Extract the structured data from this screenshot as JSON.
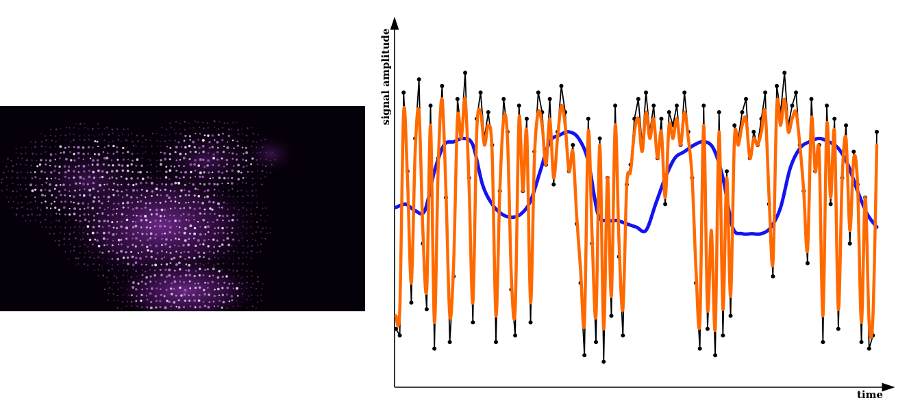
{
  "image": {
    "subject": "microscopy-image",
    "colors": {
      "background": "#06000a",
      "fluorescence": "#b86fd0",
      "highlight": "#f2dcff"
    }
  },
  "chart_data": {
    "type": "line",
    "xlabel": "time",
    "ylabel": "signal amplitude",
    "grid": false,
    "legend": "none",
    "axes": {
      "arrows": true,
      "tick_labels": false
    },
    "xlim": [
      0,
      1
    ],
    "ylim": [
      0,
      1
    ],
    "series": [
      {
        "style": "black-line-with-markers",
        "color": "#000000",
        "x": [
          0.0,
          0.008,
          0.016,
          0.024,
          0.032,
          0.04,
          0.048,
          0.056,
          0.064,
          0.072,
          0.08,
          0.088,
          0.096,
          0.104,
          0.112,
          0.12,
          0.128,
          0.136,
          0.144,
          0.152,
          0.16,
          0.168,
          0.176,
          0.184,
          0.192,
          0.2,
          0.208,
          0.216,
          0.224,
          0.232,
          0.24,
          0.248,
          0.256,
          0.264,
          0.272,
          0.28,
          0.288,
          0.296,
          0.304,
          0.312,
          0.32,
          0.328,
          0.336,
          0.344,
          0.352,
          0.36,
          0.368,
          0.376,
          0.384,
          0.392,
          0.4,
          0.408,
          0.416,
          0.424,
          0.432,
          0.44,
          0.448,
          0.456,
          0.464,
          0.472,
          0.48,
          0.488,
          0.496,
          0.504,
          0.512,
          0.52,
          0.528,
          0.536,
          0.544,
          0.552,
          0.56,
          0.568,
          0.576,
          0.584,
          0.592,
          0.6,
          0.608,
          0.616,
          0.624,
          0.632,
          0.64,
          0.648,
          0.656,
          0.664,
          0.672,
          0.68,
          0.688,
          0.696,
          0.704,
          0.712,
          0.72,
          0.728,
          0.736,
          0.744,
          0.752,
          0.76,
          0.768,
          0.776,
          0.784,
          0.792,
          0.8,
          0.808,
          0.816,
          0.824,
          0.832,
          0.84,
          0.848,
          0.856,
          0.864,
          0.872,
          0.88,
          0.888,
          0.896,
          0.904,
          0.912,
          0.92,
          0.928,
          0.936,
          0.944,
          0.952,
          0.96,
          0.968,
          0.976,
          0.984,
          0.992,
          1.0
        ],
        "y": [
          0.14,
          0.12,
          0.86,
          0.62,
          0.22,
          0.72,
          0.9,
          0.4,
          0.2,
          0.82,
          0.08,
          0.66,
          0.88,
          0.54,
          0.1,
          0.3,
          0.84,
          0.74,
          0.92,
          0.6,
          0.16,
          0.78,
          0.86,
          0.72,
          0.8,
          0.7,
          0.1,
          0.56,
          0.84,
          0.74,
          0.26,
          0.12,
          0.82,
          0.56,
          0.78,
          0.16,
          0.68,
          0.86,
          0.8,
          0.64,
          0.84,
          0.58,
          0.74,
          0.88,
          0.8,
          0.62,
          0.7,
          0.46,
          0.28,
          0.06,
          0.78,
          0.4,
          0.1,
          0.72,
          0.04,
          0.6,
          0.18,
          0.82,
          0.36,
          0.12,
          0.58,
          0.64,
          0.78,
          0.84,
          0.7,
          0.86,
          0.74,
          0.82,
          0.66,
          0.78,
          0.52,
          0.8,
          0.76,
          0.82,
          0.7,
          0.86,
          0.74,
          0.6,
          0.28,
          0.08,
          0.82,
          0.14,
          0.42,
          0.06,
          0.8,
          0.12,
          0.62,
          0.18,
          0.76,
          0.72,
          0.8,
          0.84,
          0.66,
          0.74,
          0.7,
          0.78,
          0.86,
          0.52,
          0.3,
          0.88,
          0.8,
          0.92,
          0.76,
          0.82,
          0.86,
          0.7,
          0.56,
          0.34,
          0.84,
          0.62,
          0.7,
          0.1,
          0.82,
          0.52,
          0.78,
          0.14,
          0.6,
          0.76,
          0.4,
          0.68,
          0.58,
          0.1,
          0.54,
          0.08,
          0.12,
          0.74
        ]
      },
      {
        "style": "blue-smoothed",
        "color": "#1414f0",
        "x": [
          0.0,
          0.02,
          0.04,
          0.06,
          0.08,
          0.1,
          0.12,
          0.14,
          0.16,
          0.18,
          0.2,
          0.22,
          0.24,
          0.26,
          0.28,
          0.3,
          0.32,
          0.34,
          0.36,
          0.38,
          0.4,
          0.42,
          0.44,
          0.46,
          0.48,
          0.5,
          0.52,
          0.54,
          0.56,
          0.58,
          0.6,
          0.62,
          0.64,
          0.66,
          0.68,
          0.7,
          0.72,
          0.74,
          0.76,
          0.78,
          0.8,
          0.82,
          0.84,
          0.86,
          0.88,
          0.9,
          0.92,
          0.94,
          0.96,
          0.98,
          1.0
        ],
        "y": [
          0.51,
          0.52,
          0.5,
          0.5,
          0.62,
          0.7,
          0.71,
          0.72,
          0.7,
          0.58,
          0.52,
          0.49,
          0.48,
          0.49,
          0.53,
          0.62,
          0.71,
          0.73,
          0.74,
          0.72,
          0.65,
          0.49,
          0.47,
          0.47,
          0.46,
          0.45,
          0.44,
          0.52,
          0.6,
          0.66,
          0.68,
          0.7,
          0.71,
          0.69,
          0.6,
          0.45,
          0.43,
          0.43,
          0.43,
          0.45,
          0.51,
          0.63,
          0.69,
          0.71,
          0.72,
          0.71,
          0.69,
          0.64,
          0.56,
          0.49,
          0.45
        ]
      },
      {
        "style": "orange-smoothed",
        "color": "#ff6a00",
        "x": [
          0.0,
          0.008,
          0.016,
          0.024,
          0.032,
          0.04,
          0.048,
          0.056,
          0.064,
          0.072,
          0.08,
          0.088,
          0.096,
          0.104,
          0.112,
          0.12,
          0.128,
          0.136,
          0.144,
          0.152,
          0.16,
          0.168,
          0.176,
          0.184,
          0.192,
          0.2,
          0.208,
          0.216,
          0.224,
          0.232,
          0.24,
          0.248,
          0.256,
          0.264,
          0.272,
          0.28,
          0.288,
          0.296,
          0.304,
          0.312,
          0.32,
          0.328,
          0.336,
          0.344,
          0.352,
          0.36,
          0.368,
          0.376,
          0.384,
          0.392,
          0.4,
          0.408,
          0.416,
          0.424,
          0.432,
          0.44,
          0.448,
          0.456,
          0.464,
          0.472,
          0.48,
          0.488,
          0.496,
          0.504,
          0.512,
          0.52,
          0.528,
          0.536,
          0.544,
          0.552,
          0.56,
          0.568,
          0.576,
          0.584,
          0.592,
          0.6,
          0.608,
          0.616,
          0.624,
          0.632,
          0.64,
          0.648,
          0.656,
          0.664,
          0.672,
          0.68,
          0.688,
          0.696,
          0.704,
          0.712,
          0.72,
          0.728,
          0.736,
          0.744,
          0.752,
          0.76,
          0.768,
          0.776,
          0.784,
          0.792,
          0.8,
          0.808,
          0.816,
          0.824,
          0.832,
          0.84,
          0.848,
          0.856,
          0.864,
          0.872,
          0.88,
          0.888,
          0.896,
          0.904,
          0.912,
          0.92,
          0.928,
          0.936,
          0.944,
          0.952,
          0.96,
          0.968,
          0.976,
          0.984,
          0.992,
          1.0
        ],
        "y": [
          0.18,
          0.2,
          0.8,
          0.6,
          0.28,
          0.68,
          0.8,
          0.44,
          0.26,
          0.76,
          0.16,
          0.64,
          0.84,
          0.56,
          0.18,
          0.34,
          0.78,
          0.72,
          0.84,
          0.58,
          0.22,
          0.74,
          0.8,
          0.7,
          0.76,
          0.68,
          0.18,
          0.56,
          0.78,
          0.72,
          0.3,
          0.2,
          0.78,
          0.56,
          0.74,
          0.22,
          0.66,
          0.8,
          0.76,
          0.64,
          0.78,
          0.6,
          0.72,
          0.82,
          0.76,
          0.62,
          0.68,
          0.48,
          0.32,
          0.16,
          0.74,
          0.42,
          0.18,
          0.7,
          0.14,
          0.6,
          0.24,
          0.76,
          0.4,
          0.2,
          0.58,
          0.62,
          0.74,
          0.78,
          0.68,
          0.8,
          0.72,
          0.78,
          0.66,
          0.74,
          0.54,
          0.76,
          0.72,
          0.78,
          0.7,
          0.8,
          0.72,
          0.6,
          0.32,
          0.16,
          0.76,
          0.2,
          0.44,
          0.14,
          0.74,
          0.2,
          0.6,
          0.24,
          0.72,
          0.7,
          0.76,
          0.78,
          0.66,
          0.72,
          0.7,
          0.74,
          0.8,
          0.54,
          0.34,
          0.82,
          0.76,
          0.84,
          0.74,
          0.78,
          0.8,
          0.7,
          0.56,
          0.38,
          0.78,
          0.62,
          0.68,
          0.18,
          0.76,
          0.54,
          0.74,
          0.2,
          0.6,
          0.72,
          0.44,
          0.66,
          0.58,
          0.16,
          0.54,
          0.16,
          0.18,
          0.7
        ]
      }
    ]
  }
}
